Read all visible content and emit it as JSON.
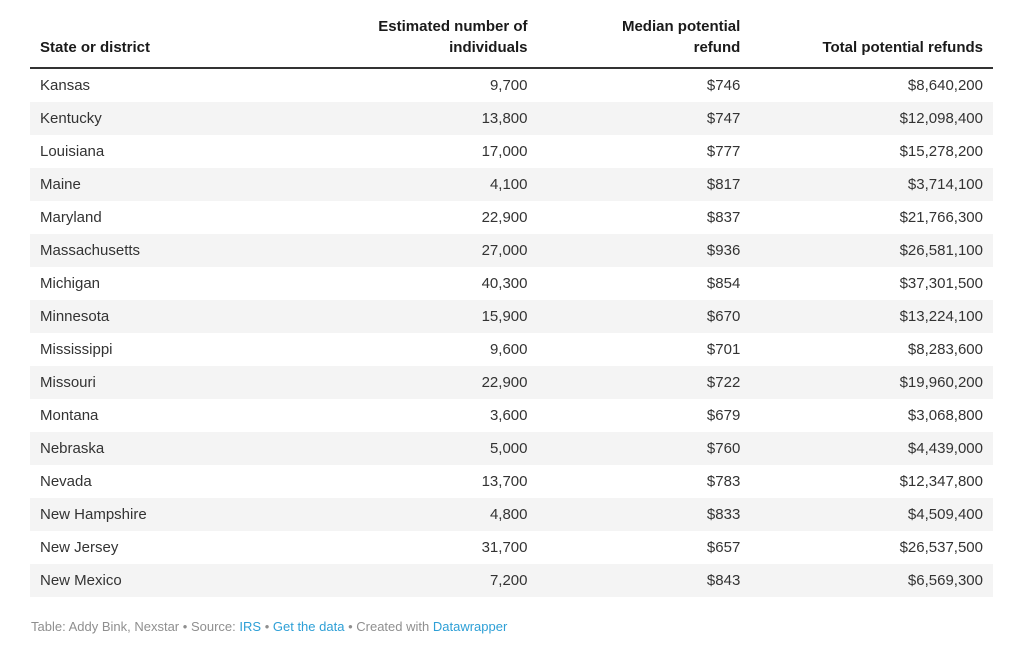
{
  "table": {
    "columns": [
      {
        "label": "State or district",
        "align": "left"
      },
      {
        "label": "Estimated number of\nindividuals",
        "align": "right"
      },
      {
        "label": "Median potential\nrefund",
        "align": "right"
      },
      {
        "label": "Total potential refunds",
        "align": "right"
      }
    ],
    "rows": [
      [
        "Kansas",
        "9,700",
        "$746",
        "$8,640,200"
      ],
      [
        "Kentucky",
        "13,800",
        "$747",
        "$12,098,400"
      ],
      [
        "Louisiana",
        "17,000",
        "$777",
        "$15,278,200"
      ],
      [
        "Maine",
        "4,100",
        "$817",
        "$3,714,100"
      ],
      [
        "Maryland",
        "22,900",
        "$837",
        "$21,766,300"
      ],
      [
        "Massachusetts",
        "27,000",
        "$936",
        "$26,581,100"
      ],
      [
        "Michigan",
        "40,300",
        "$854",
        "$37,301,500"
      ],
      [
        "Minnesota",
        "15,900",
        "$670",
        "$13,224,100"
      ],
      [
        "Mississippi",
        "9,600",
        "$701",
        "$8,283,600"
      ],
      [
        "Missouri",
        "22,900",
        "$722",
        "$19,960,200"
      ],
      [
        "Montana",
        "3,600",
        "$679",
        "$3,068,800"
      ],
      [
        "Nebraska",
        "5,000",
        "$760",
        "$4,439,000"
      ],
      [
        "Nevada",
        "13,700",
        "$783",
        "$12,347,800"
      ],
      [
        "New Hampshire",
        "4,800",
        "$833",
        "$4,509,400"
      ],
      [
        "New Jersey",
        "31,700",
        "$657",
        "$26,537,500"
      ],
      [
        "New Mexico",
        "7,200",
        "$843",
        "$6,569,300"
      ]
    ]
  },
  "footer": {
    "credit": "Table: Addy Bink, Nexstar",
    "sep": "•",
    "source_label": "Source:",
    "source_link": "IRS",
    "get_data_link": "Get the data",
    "created_label": "Created with",
    "created_link": "Datawrapper"
  },
  "colors": {
    "row_stripe": "#f4f4f4",
    "header_rule": "#333333",
    "body_text": "#333333",
    "header_text": "#1a1a1a",
    "footer_text": "#8f8f8f",
    "link_blue": "#2d9fd6"
  },
  "chart_data": {
    "type": "table",
    "title": "",
    "columns": [
      "State or district",
      "Estimated number of individuals",
      "Median potential refund",
      "Total potential refunds"
    ],
    "rows": [
      {
        "state": "Kansas",
        "individuals": 9700,
        "median_refund": 746,
        "total_refunds": 8640200
      },
      {
        "state": "Kentucky",
        "individuals": 13800,
        "median_refund": 747,
        "total_refunds": 12098400
      },
      {
        "state": "Louisiana",
        "individuals": 17000,
        "median_refund": 777,
        "total_refunds": 15278200
      },
      {
        "state": "Maine",
        "individuals": 4100,
        "median_refund": 817,
        "total_refunds": 3714100
      },
      {
        "state": "Maryland",
        "individuals": 22900,
        "median_refund": 837,
        "total_refunds": 21766300
      },
      {
        "state": "Massachusetts",
        "individuals": 27000,
        "median_refund": 936,
        "total_refunds": 26581100
      },
      {
        "state": "Michigan",
        "individuals": 40300,
        "median_refund": 854,
        "total_refunds": 37301500
      },
      {
        "state": "Minnesota",
        "individuals": 15900,
        "median_refund": 670,
        "total_refunds": 13224100
      },
      {
        "state": "Mississippi",
        "individuals": 9600,
        "median_refund": 701,
        "total_refunds": 8283600
      },
      {
        "state": "Missouri",
        "individuals": 22900,
        "median_refund": 722,
        "total_refunds": 19960200
      },
      {
        "state": "Montana",
        "individuals": 3600,
        "median_refund": 679,
        "total_refunds": 3068800
      },
      {
        "state": "Nebraska",
        "individuals": 5000,
        "median_refund": 760,
        "total_refunds": 4439000
      },
      {
        "state": "Nevada",
        "individuals": 13700,
        "median_refund": 783,
        "total_refunds": 12347800
      },
      {
        "state": "New Hampshire",
        "individuals": 4800,
        "median_refund": 833,
        "total_refunds": 4509400
      },
      {
        "state": "New Jersey",
        "individuals": 31700,
        "median_refund": 657,
        "total_refunds": 26537500
      },
      {
        "state": "New Mexico",
        "individuals": 7200,
        "median_refund": 843,
        "total_refunds": 6569300
      }
    ],
    "notes": "Alternating row stripes, numeric columns right-aligned, state column left-aligned"
  }
}
